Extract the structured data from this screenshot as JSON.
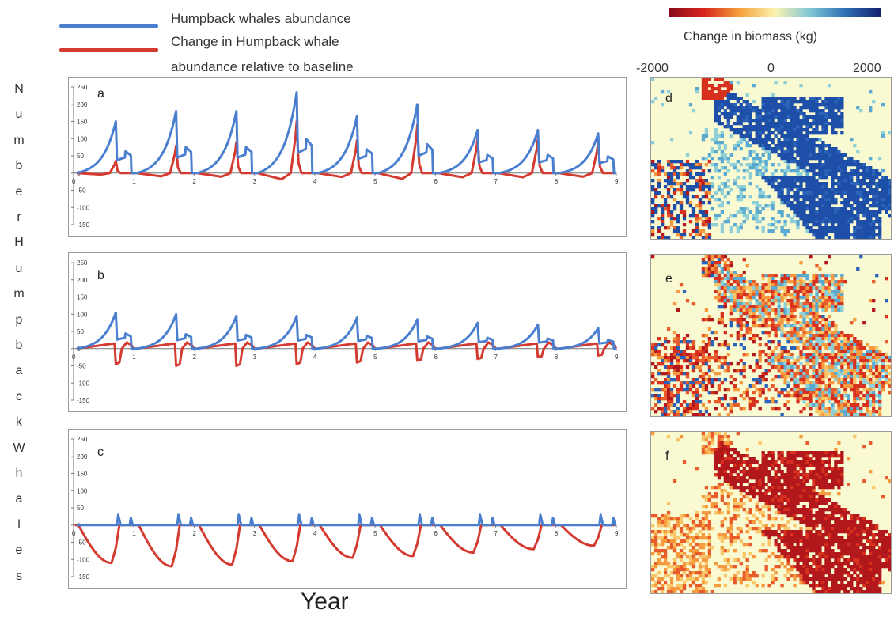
{
  "legend": {
    "items": [
      {
        "label": "Humpback whales abundance",
        "color": "#4a7fd0"
      },
      {
        "label": "Change in Humpback whale abundance relative to baseline",
        "line1": "Change in Humpback whale",
        "line2": "abundance relative to baseline",
        "color": "#d43a2f"
      }
    ]
  },
  "colorbar": {
    "title": "Change in biomass (kg)",
    "tick_labels": [
      "-2000",
      "0",
      "2000"
    ],
    "colors": [
      "#8b0a1a",
      "#d9261c",
      "#f5a03a",
      "#fbf3b0",
      "#7fc6d6",
      "#2e6fb5",
      "#14206e"
    ]
  },
  "ylabel_letters": [
    "N",
    "u",
    "m",
    "b",
    "e",
    "r",
    "H",
    "u",
    "m",
    "p",
    "b",
    "a",
    "c",
    "k",
    "W",
    "h",
    "a",
    "l",
    "e",
    "s"
  ],
  "xaxis_title": "Year",
  "chart_data": [
    {
      "type": "line",
      "panel": "a",
      "ylim": [
        -150,
        250
      ],
      "yticks": [
        250,
        200,
        150,
        100,
        50,
        0,
        -50,
        -100,
        -150
      ],
      "xticks": [
        0,
        1,
        2,
        3,
        4,
        5,
        6,
        7,
        8,
        9
      ],
      "xlim": [
        0,
        9
      ],
      "series": [
        {
          "name": "Humpback whales abundance",
          "color": "#4a7fd0",
          "peaks": [
            150,
            180,
            180,
            235,
            165,
            200,
            125,
            125,
            115
          ]
        },
        {
          "name": "Change in Humpback whale abundance relative to baseline",
          "color": "#d43a2f",
          "peaks": [
            35,
            80,
            90,
            150,
            95,
            140,
            100,
            100,
            90
          ]
        }
      ]
    },
    {
      "type": "line",
      "panel": "b",
      "ylim": [
        -150,
        250
      ],
      "yticks": [
        250,
        200,
        150,
        100,
        50,
        0,
        -50,
        -100,
        -150
      ],
      "xticks": [
        0,
        1,
        2,
        3,
        4,
        5,
        6,
        7,
        8,
        9
      ],
      "xlim": [
        0,
        9
      ],
      "series": [
        {
          "name": "Humpback whales abundance",
          "color": "#4a7fd0",
          "peaks": [
            105,
            100,
            95,
            95,
            90,
            85,
            75,
            70,
            60
          ]
        },
        {
          "name": "Change in Humpback whale abundance relative to baseline",
          "color": "#d43a2f",
          "peaks": [
            -45,
            -50,
            -50,
            -45,
            -40,
            -35,
            -30,
            -25,
            -20
          ]
        }
      ]
    },
    {
      "type": "line",
      "panel": "c",
      "ylim": [
        -150,
        250
      ],
      "yticks": [
        250,
        200,
        150,
        100,
        50,
        0,
        -50,
        -100,
        -150
      ],
      "xticks": [
        0,
        1,
        2,
        3,
        4,
        5,
        6,
        7,
        8,
        9
      ],
      "xlim": [
        0,
        9
      ],
      "series": [
        {
          "name": "Humpback whales abundance",
          "color": "#4a7fd0",
          "peaks": [
            30,
            30,
            30,
            30,
            30,
            30,
            30,
            30,
            30
          ]
        },
        {
          "name": "Change in Humpback whale abundance relative to baseline",
          "color": "#d43a2f",
          "peaks": [
            -110,
            -120,
            -115,
            -105,
            -95,
            -90,
            -80,
            -70,
            -60
          ]
        }
      ]
    }
  ],
  "maps": [
    {
      "panel": "d",
      "scenario": "positive"
    },
    {
      "panel": "e",
      "scenario": "mixed"
    },
    {
      "panel": "f",
      "scenario": "negative"
    }
  ]
}
